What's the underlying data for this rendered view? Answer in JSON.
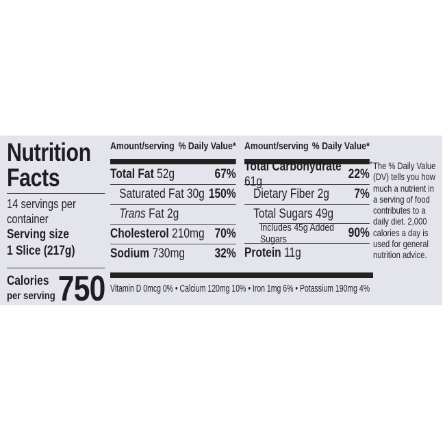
{
  "label": {
    "title_line1": "Nutrition",
    "title_line2": "Facts",
    "servings_per_container": "14 servings per container",
    "serving_size_label": "Serving size",
    "serving_size_value": "1 Slice (217g)",
    "calories_label": "Calories",
    "calories_sublabel": "per serving",
    "calories_value": "750",
    "header_amount": "Amount/serving",
    "header_dv": "% Daily Value*",
    "left_nutrients": [
      {
        "name": "Total Fat",
        "amount": "52g",
        "dv": "67%"
      },
      {
        "name": "Saturated Fat 30g",
        "dv": "150%"
      },
      {
        "name_italic": "Trans",
        "name": "Fat 2g"
      },
      {
        "name": "Cholesterol",
        "amount": "210mg",
        "dv": "70%"
      },
      {
        "name": "Sodium",
        "amount": "730mg",
        "dv": "32%"
      }
    ],
    "right_nutrients": [
      {
        "name": "Total Carbohydrate",
        "amount": "61g",
        "dv": "22%"
      },
      {
        "name": "Dietary Fiber 2g",
        "dv": "7%"
      },
      {
        "name": "Total Sugars 49g"
      },
      {
        "name": "Includes 45g Added Sugars",
        "dv": "90%"
      },
      {
        "name": "Protein",
        "amount": "11g"
      }
    ],
    "vitamins": "Vitamin D 0mcg 0%  •  Calcium 120mg 10%  •  Iron 1mg 6%  •  Potassium 190mg 4%",
    "footnote_star": "*",
    "footnote": "The % Daily Value (DV) tells you how much a nutrient in a serving of food contributes to a daily diet. 2,000 calories a day is used for general nutrition advice."
  }
}
